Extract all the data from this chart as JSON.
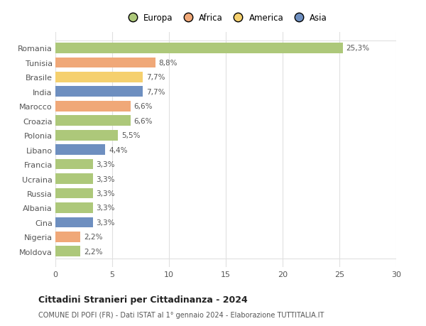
{
  "countries": [
    "Romania",
    "Tunisia",
    "Brasile",
    "India",
    "Marocco",
    "Croazia",
    "Polonia",
    "Libano",
    "Francia",
    "Ucraina",
    "Russia",
    "Albania",
    "Cina",
    "Nigeria",
    "Moldova"
  ],
  "values": [
    25.3,
    8.8,
    7.7,
    7.7,
    6.6,
    6.6,
    5.5,
    4.4,
    3.3,
    3.3,
    3.3,
    3.3,
    3.3,
    2.2,
    2.2
  ],
  "labels": [
    "25,3%",
    "8,8%",
    "7,7%",
    "7,7%",
    "6,6%",
    "6,6%",
    "5,5%",
    "4,4%",
    "3,3%",
    "3,3%",
    "3,3%",
    "3,3%",
    "3,3%",
    "2,2%",
    "2,2%"
  ],
  "colors": [
    "#adc87a",
    "#f0a878",
    "#f5d06e",
    "#6e8fc0",
    "#f0a878",
    "#adc87a",
    "#adc87a",
    "#6e8fc0",
    "#adc87a",
    "#adc87a",
    "#adc87a",
    "#adc87a",
    "#6e8fc0",
    "#f0a878",
    "#adc87a"
  ],
  "legend_labels": [
    "Europa",
    "Africa",
    "America",
    "Asia"
  ],
  "legend_colors": [
    "#adc87a",
    "#f0a878",
    "#f5d06e",
    "#6e8fc0"
  ],
  "title": "Cittadini Stranieri per Cittadinanza - 2024",
  "subtitle": "COMUNE DI POFI (FR) - Dati ISTAT al 1° gennaio 2024 - Elaborazione TUTTITALIA.IT",
  "xlim": [
    0,
    30
  ],
  "xticks": [
    0,
    5,
    10,
    15,
    20,
    25,
    30
  ],
  "background_color": "#ffffff",
  "grid_color": "#e0e0e0",
  "bar_height": 0.72,
  "label_fontsize": 7.5,
  "ytick_fontsize": 8,
  "xtick_fontsize": 8,
  "title_fontsize": 9,
  "subtitle_fontsize": 7
}
